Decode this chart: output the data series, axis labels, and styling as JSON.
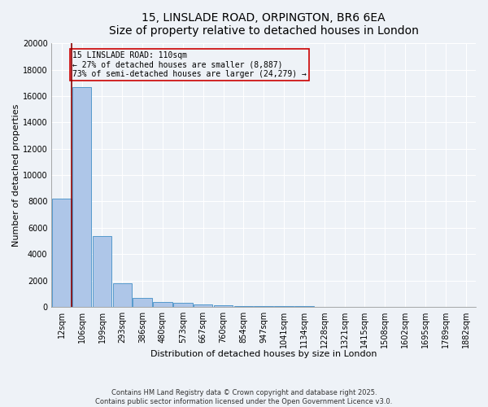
{
  "title_line1": "15, LINSLADE ROAD, ORPINGTON, BR6 6EA",
  "title_line2": "Size of property relative to detached houses in London",
  "xlabel": "Distribution of detached houses by size in London",
  "ylabel": "Number of detached properties",
  "bar_categories": [
    "12sqm",
    "106sqm",
    "199sqm",
    "293sqm",
    "386sqm",
    "480sqm",
    "573sqm",
    "667sqm",
    "760sqm",
    "854sqm",
    "947sqm",
    "1041sqm",
    "1134sqm",
    "1228sqm",
    "1321sqm",
    "1415sqm",
    "1508sqm",
    "1602sqm",
    "1695sqm",
    "1789sqm",
    "1882sqm"
  ],
  "bar_values": [
    8200,
    16700,
    5350,
    1800,
    650,
    350,
    280,
    150,
    100,
    80,
    50,
    40,
    30,
    20,
    15,
    12,
    10,
    8,
    5,
    4,
    3
  ],
  "bar_color": "#aec6e8",
  "bar_edge_color": "#5599cc",
  "ylim": [
    0,
    20000
  ],
  "yticks": [
    0,
    2000,
    4000,
    6000,
    8000,
    10000,
    12000,
    14000,
    16000,
    18000,
    20000
  ],
  "property_line_x": 0.5,
  "property_line_color": "#8b0000",
  "annotation_text": "15 LINSLADE ROAD: 110sqm\n← 27% of detached houses are smaller (8,887)\n73% of semi-detached houses are larger (24,279) →",
  "annotation_box_color": "#cc0000",
  "footer_line1": "Contains HM Land Registry data © Crown copyright and database right 2025.",
  "footer_line2": "Contains public sector information licensed under the Open Government Licence v3.0.",
  "background_color": "#eef2f7",
  "grid_color": "#ffffff",
  "title_fontsize": 10,
  "axis_fontsize": 8,
  "tick_fontsize": 7,
  "annot_fontsize": 7
}
